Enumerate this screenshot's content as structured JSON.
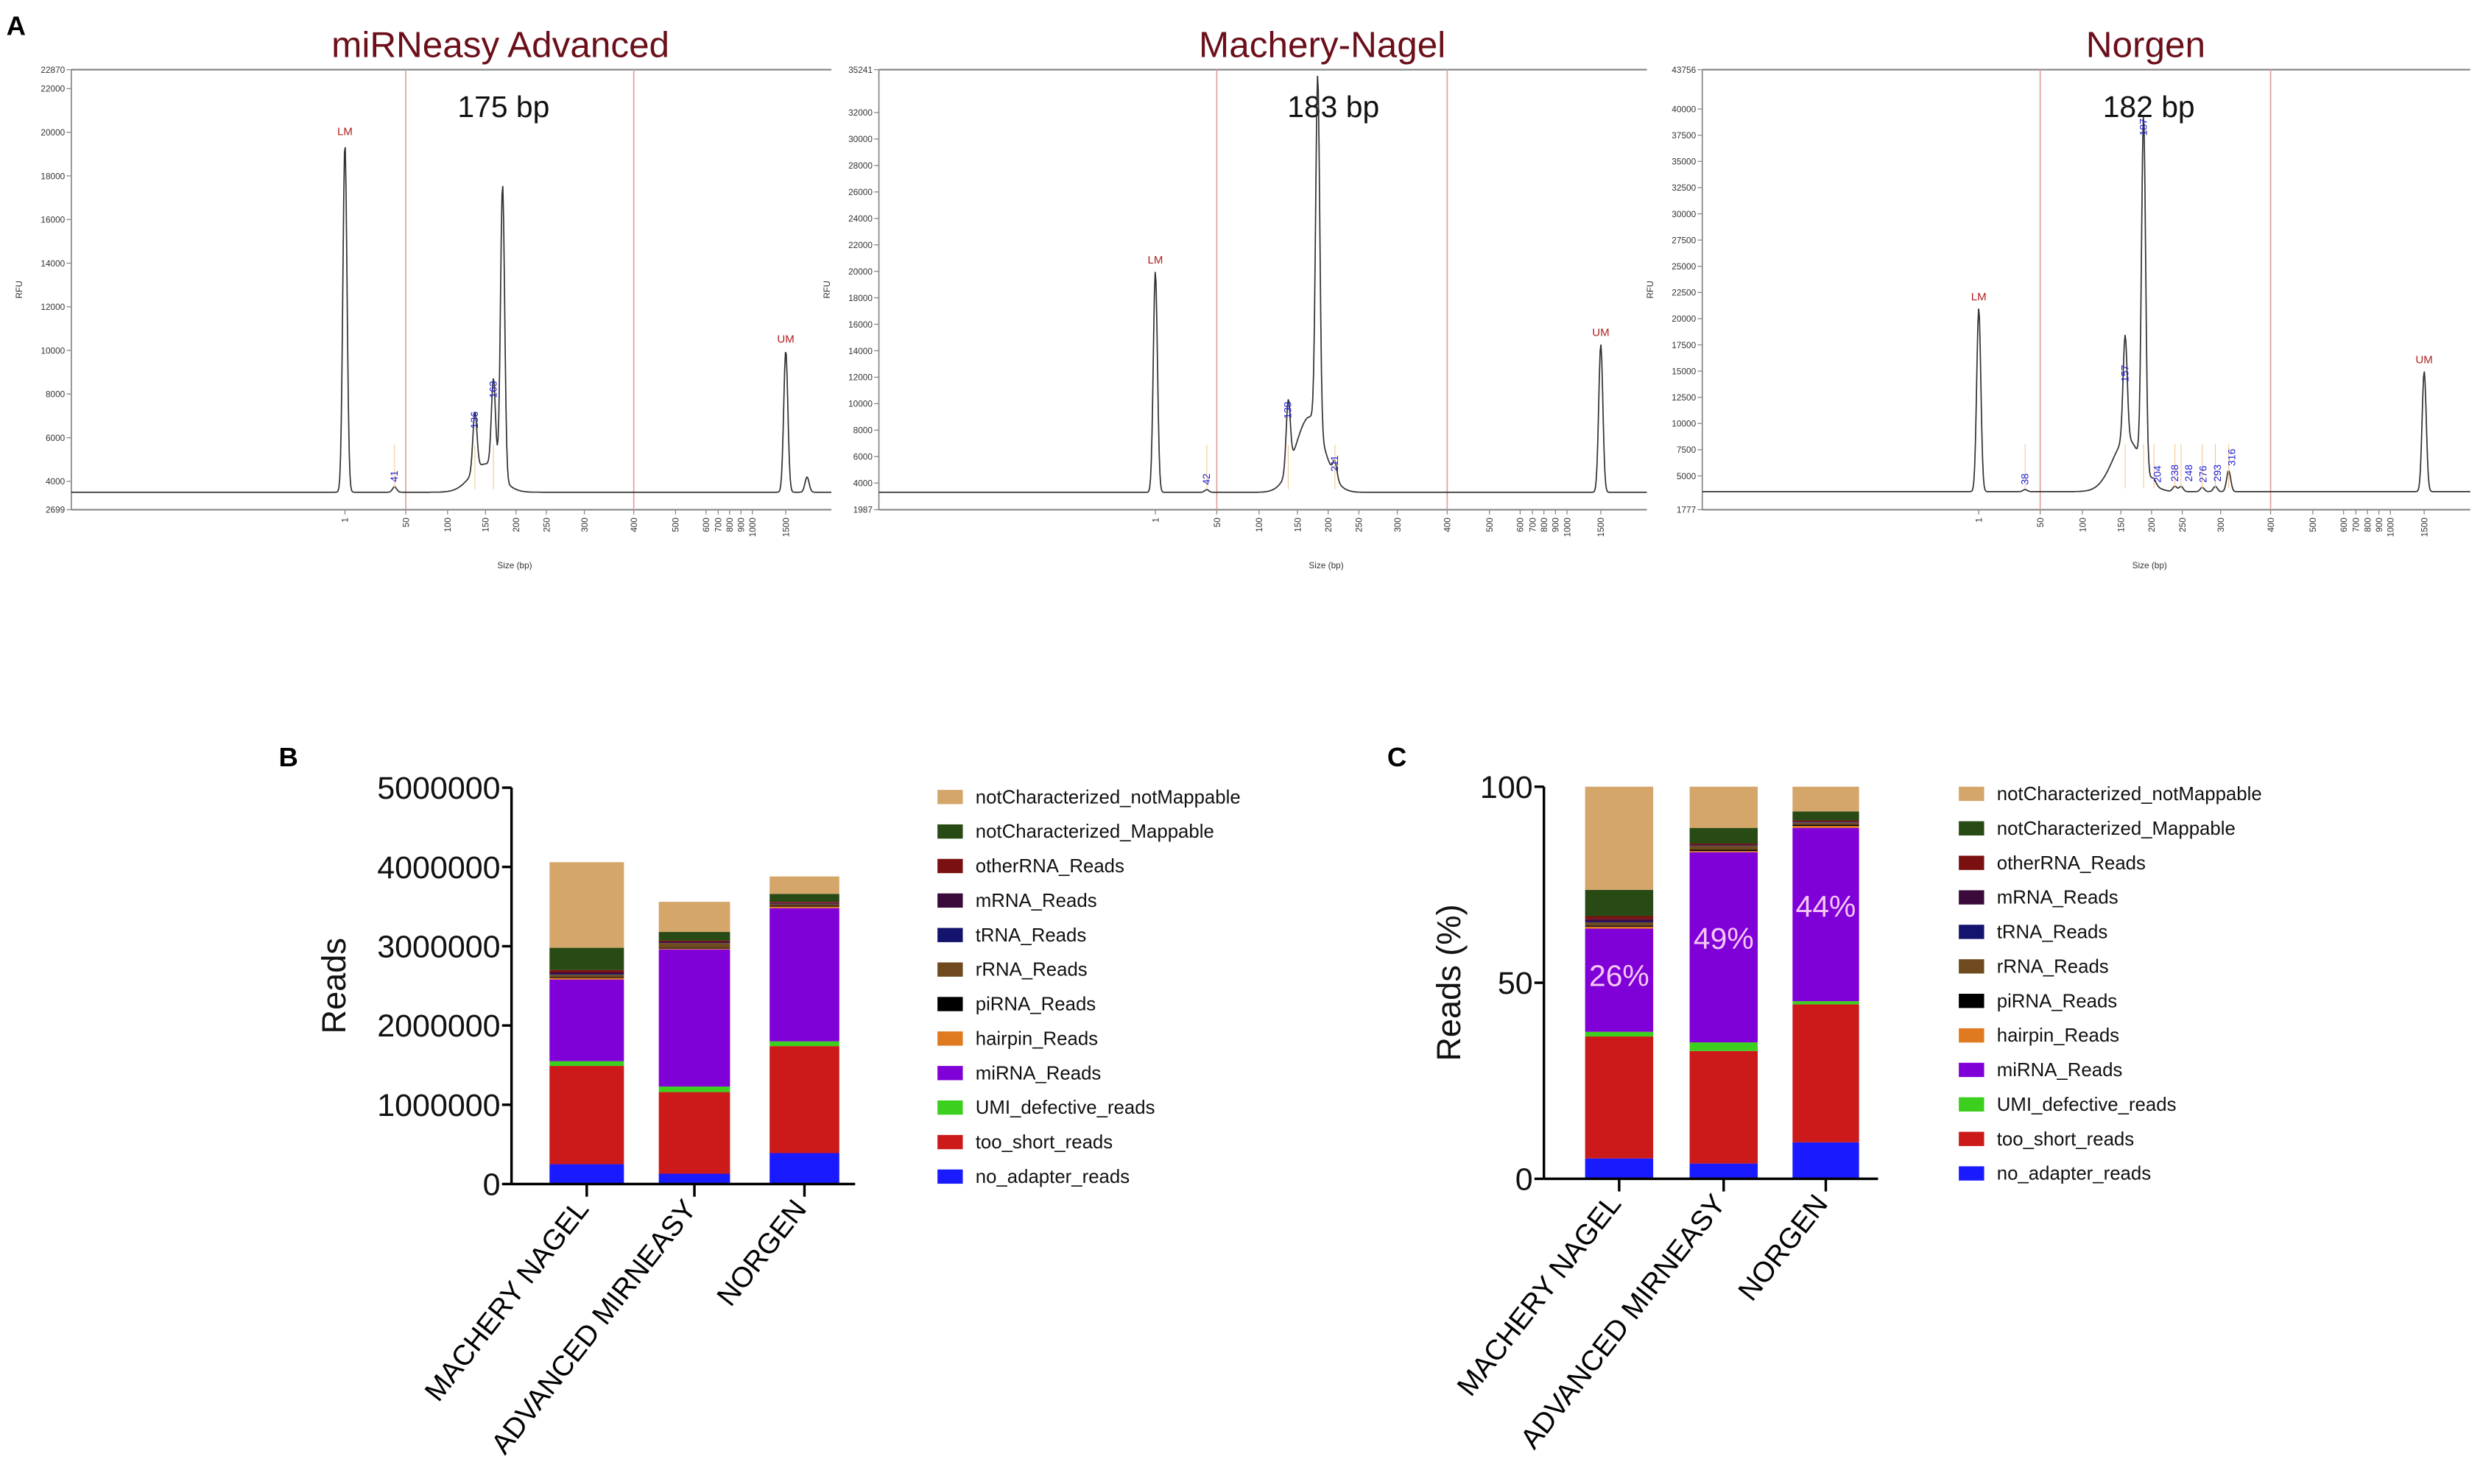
{
  "panel_labels": {
    "a": "A",
    "b": "B",
    "c": "C"
  },
  "chart_data": [
    {
      "type": "line",
      "panel": "A",
      "title": "miRNeasy Advanced",
      "annotation": "175 bp",
      "ylabel": "RFU",
      "xlabel": "Size (bp)",
      "ylim": [
        2699,
        22870
      ],
      "yticks": [
        "2699",
        "4000",
        "6000",
        "8000",
        "10000",
        "12000",
        "14000",
        "16000",
        "18000",
        "20000",
        "22000",
        "22870"
      ],
      "xticks": [
        "1",
        "50",
        "100",
        "150",
        "200",
        "250",
        "300",
        "400",
        "500",
        "600",
        "700",
        "800",
        "900",
        "1000",
        "1500"
      ],
      "region_lines_bp": [
        50,
        400
      ],
      "baseline_rfu": 3500,
      "peaks": [
        {
          "size": 1,
          "rfu": 19500,
          "label": "LM",
          "marker": true
        },
        {
          "size": 41,
          "rfu": 3750,
          "label": "41"
        },
        {
          "size": 150,
          "rfu": 4800,
          "broad": true
        },
        {
          "size": 136,
          "rfu": 6200,
          "label": "136"
        },
        {
          "size": 163,
          "rfu": 7600,
          "label": "163"
        },
        {
          "size": 178,
          "rfu": 17000
        },
        {
          "size": 1500,
          "rfu": 10000,
          "label": "UM",
          "marker": true
        },
        {
          "size": 1900,
          "rfu": 4200
        }
      ]
    },
    {
      "type": "line",
      "panel": "A",
      "title": "Machery-Nagel",
      "annotation": "183 bp",
      "ylabel": "RFU",
      "xlabel": "Size (bp)",
      "ylim": [
        1987,
        35241
      ],
      "yticks": [
        "1987",
        "4000",
        "6000",
        "8000",
        "10000",
        "12000",
        "14000",
        "16000",
        "18000",
        "20000",
        "22000",
        "24000",
        "26000",
        "28000",
        "30000",
        "32000",
        "35241"
      ],
      "xticks": [
        "1",
        "50",
        "100",
        "150",
        "200",
        "250",
        "300",
        "400",
        "500",
        "600",
        "700",
        "800",
        "900",
        "1000",
        "1500"
      ],
      "region_lines_bp": [
        50,
        400
      ],
      "baseline_rfu": 3300,
      "peaks": [
        {
          "size": 1,
          "rfu": 20000,
          "label": "LM",
          "marker": true
        },
        {
          "size": 42,
          "rfu": 3500,
          "label": "42"
        },
        {
          "size": 170,
          "rfu": 9000,
          "broad": true
        },
        {
          "size": 138,
          "rfu": 8500,
          "label": "138"
        },
        {
          "size": 183,
          "rfu": 30000
        },
        {
          "size": 211,
          "rfu": 4500,
          "label": "211"
        },
        {
          "size": 1500,
          "rfu": 14500,
          "label": "UM",
          "marker": true
        }
      ]
    },
    {
      "type": "line",
      "panel": "A",
      "title": "Norgen",
      "annotation": "182 bp",
      "ylabel": "RFU",
      "xlabel": "Size (bp)",
      "ylim": [
        1777,
        43756
      ],
      "yticks": [
        "1777",
        "5000",
        "7500",
        "10000",
        "12500",
        "15000",
        "17500",
        "20000",
        "22500",
        "25000",
        "27500",
        "30000",
        "32500",
        "35000",
        "37500",
        "40000",
        "43756"
      ],
      "xticks": [
        "1",
        "50",
        "100",
        "150",
        "200",
        "250",
        "300",
        "400",
        "500",
        "600",
        "700",
        "800",
        "900",
        "1000",
        "1500"
      ],
      "region_lines_bp": [
        50,
        400
      ],
      "baseline_rfu": 3500,
      "peaks": [
        {
          "size": 1,
          "rfu": 21000,
          "label": "LM",
          "marker": true
        },
        {
          "size": 38,
          "rfu": 3700,
          "label": "38"
        },
        {
          "size": 160,
          "rfu": 8500,
          "broad": true
        },
        {
          "size": 157,
          "rfu": 13500,
          "label": "157"
        },
        {
          "size": 187,
          "rfu": 37000,
          "label": "187"
        },
        {
          "size": 204,
          "rfu": 3900,
          "label": "204"
        },
        {
          "size": 238,
          "rfu": 4000,
          "label": "238"
        },
        {
          "size": 248,
          "rfu": 4000,
          "label": "248"
        },
        {
          "size": 276,
          "rfu": 3900,
          "label": "276"
        },
        {
          "size": 293,
          "rfu": 4000,
          "label": "293"
        },
        {
          "size": 316,
          "rfu": 5500,
          "label": "316"
        },
        {
          "size": 1500,
          "rfu": 15000,
          "label": "UM",
          "marker": true
        }
      ]
    },
    {
      "type": "bar",
      "stacked": true,
      "panel": "B",
      "ylabel": "Reads",
      "ylim": [
        0,
        5000000
      ],
      "yticks": [
        "0",
        "1000000",
        "2000000",
        "3000000",
        "4000000",
        "5000000"
      ],
      "categories": [
        "MACHERY NAGEL",
        "ADVANCED MIRNEASY",
        "NORGEN"
      ],
      "legend_position": "right",
      "series": [
        {
          "name": "no_adapter_reads",
          "color": "#1a1aff",
          "values": [
            250000,
            130000,
            390000
          ]
        },
        {
          "name": "too_short_reads",
          "color": "#cc1a1a",
          "values": [
            1240000,
            1030000,
            1350000
          ]
        },
        {
          "name": "UMI_defective_reads",
          "color": "#3ccf1e",
          "values": [
            60000,
            70000,
            60000
          ]
        },
        {
          "name": "miRNA_Reads",
          "color": "#8000d8",
          "values": [
            1030000,
            1730000,
            1680000
          ]
        },
        {
          "name": "hairpin_Reads",
          "color": "#e07a20",
          "values": [
            20000,
            10000,
            20000
          ]
        },
        {
          "name": "piRNA_Reads",
          "color": "#000000",
          "values": [
            10000,
            10000,
            10000
          ]
        },
        {
          "name": "rRNA_Reads",
          "color": "#6e4a1e",
          "values": [
            30000,
            60000,
            20000
          ]
        },
        {
          "name": "tRNA_Reads",
          "color": "#14146e",
          "values": [
            10000,
            5000,
            5000
          ]
        },
        {
          "name": "mRNA_Reads",
          "color": "#3a0a3a",
          "values": [
            20000,
            10000,
            10000
          ]
        },
        {
          "name": "otherRNA_Reads",
          "color": "#7a1010",
          "values": [
            30000,
            15000,
            15000
          ]
        },
        {
          "name": "notCharacterized_Mappable",
          "color": "#284a14",
          "values": [
            280000,
            110000,
            100000
          ]
        },
        {
          "name": "notCharacterized_notMappable",
          "color": "#d4a66a",
          "values": [
            1080000,
            380000,
            220000
          ]
        }
      ]
    },
    {
      "type": "bar",
      "stacked": true,
      "panel": "C",
      "ylabel": "Reads (%)",
      "ylim": [
        0,
        100
      ],
      "yticks": [
        "0",
        "50",
        "100"
      ],
      "categories": [
        "MACHERY NAGEL",
        "ADVANCED MIRNEASY",
        "NORGEN"
      ],
      "legend_position": "right",
      "data_labels": {
        "series": "miRNA_Reads",
        "labels": [
          "26%",
          "49%",
          "44%"
        ]
      },
      "series": [
        {
          "name": "no_adapter_reads",
          "color": "#1a1aff",
          "values": [
            5.2,
            3.9,
            9.3
          ]
        },
        {
          "name": "too_short_reads",
          "color": "#cc1a1a",
          "values": [
            31.1,
            28.7,
            35.2
          ]
        },
        {
          "name": "UMI_defective_reads",
          "color": "#3ccf1e",
          "values": [
            1.2,
            2.2,
            0.8
          ]
        },
        {
          "name": "miRNA_Reads",
          "color": "#8000d8",
          "values": [
            26.3,
            48.5,
            44.2
          ]
        },
        {
          "name": "hairpin_Reads",
          "color": "#e07a20",
          "values": [
            0.5,
            0.3,
            0.5
          ]
        },
        {
          "name": "piRNA_Reads",
          "color": "#000000",
          "values": [
            0.3,
            0.3,
            0.3
          ]
        },
        {
          "name": "rRNA_Reads",
          "color": "#6e4a1e",
          "values": [
            0.8,
            1.0,
            0.5
          ]
        },
        {
          "name": "tRNA_Reads",
          "color": "#14146e",
          "values": [
            0.3,
            0.1,
            0.1
          ]
        },
        {
          "name": "mRNA_Reads",
          "color": "#3a0a3a",
          "values": [
            0.5,
            0.2,
            0.2
          ]
        },
        {
          "name": "otherRNA_Reads",
          "color": "#7a1010",
          "values": [
            0.8,
            0.3,
            0.3
          ]
        },
        {
          "name": "notCharacterized_Mappable",
          "color": "#284a14",
          "values": [
            6.7,
            4.0,
            2.3
          ]
        },
        {
          "name": "notCharacterized_notMappable",
          "color": "#d4a66a",
          "values": [
            26.3,
            10.5,
            6.3
          ]
        }
      ]
    }
  ],
  "colors": {
    "title": "#6b0f1a",
    "peak_label": "#2020d0",
    "marker_label": "#b02020",
    "region_line": "#e0a0a0"
  }
}
